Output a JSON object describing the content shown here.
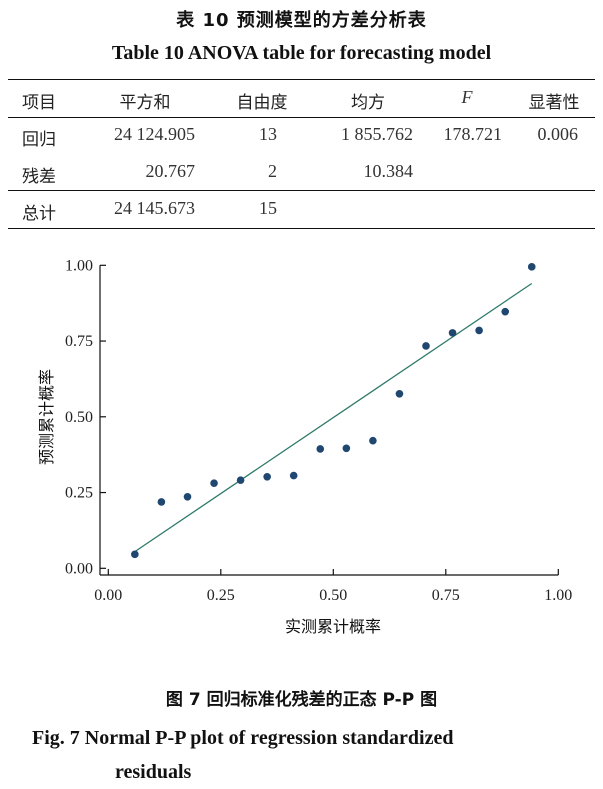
{
  "table": {
    "title_cn": "表 10  预测模型的方差分析表",
    "title_en": "Table 10    ANOVA table for forecasting model",
    "headers": [
      "项目",
      "平方和",
      "自由度",
      "均方",
      "F",
      "显著性"
    ],
    "rows": [
      [
        "回归",
        "24 124.905",
        "13",
        "1 855.762",
        "178.721",
        "0.006"
      ],
      [
        "残差",
        "20.767",
        "2",
        "10.384",
        "",
        ""
      ],
      [
        "总计",
        "24 145.673",
        "15",
        "",
        "",
        ""
      ]
    ]
  },
  "chart_data": {
    "type": "scatter",
    "xlabel": "实测累计概率",
    "ylabel": "预测累计概率",
    "xlim": [
      0,
      1
    ],
    "ylim": [
      0,
      1
    ],
    "xticks": [
      "0.00",
      "0.25",
      "0.50",
      "0.75",
      "1.00"
    ],
    "yticks": [
      "0.00",
      "0.25",
      "0.50",
      "0.75",
      "1.00"
    ],
    "grid": false,
    "points": [
      [
        0.059,
        0.046
      ],
      [
        0.118,
        0.219
      ],
      [
        0.176,
        0.236
      ],
      [
        0.235,
        0.281
      ],
      [
        0.294,
        0.291
      ],
      [
        0.353,
        0.302
      ],
      [
        0.412,
        0.306
      ],
      [
        0.471,
        0.394
      ],
      [
        0.529,
        0.396
      ],
      [
        0.588,
        0.421
      ],
      [
        0.647,
        0.576
      ],
      [
        0.706,
        0.734
      ],
      [
        0.765,
        0.777
      ],
      [
        0.824,
        0.785
      ],
      [
        0.882,
        0.847
      ],
      [
        0.941,
        0.995
      ]
    ],
    "reference_line": [
      [
        0.059,
        0.055
      ],
      [
        0.941,
        0.94
      ]
    ],
    "point_color": "#1f4770",
    "line_color": "#2e7a6a"
  },
  "caption": {
    "cn": "图 7   回归标准化残差的正态 P-P 图",
    "en_line1": "Fig. 7    Normal P-P plot of regression standardized",
    "en_line2": "residuals"
  }
}
